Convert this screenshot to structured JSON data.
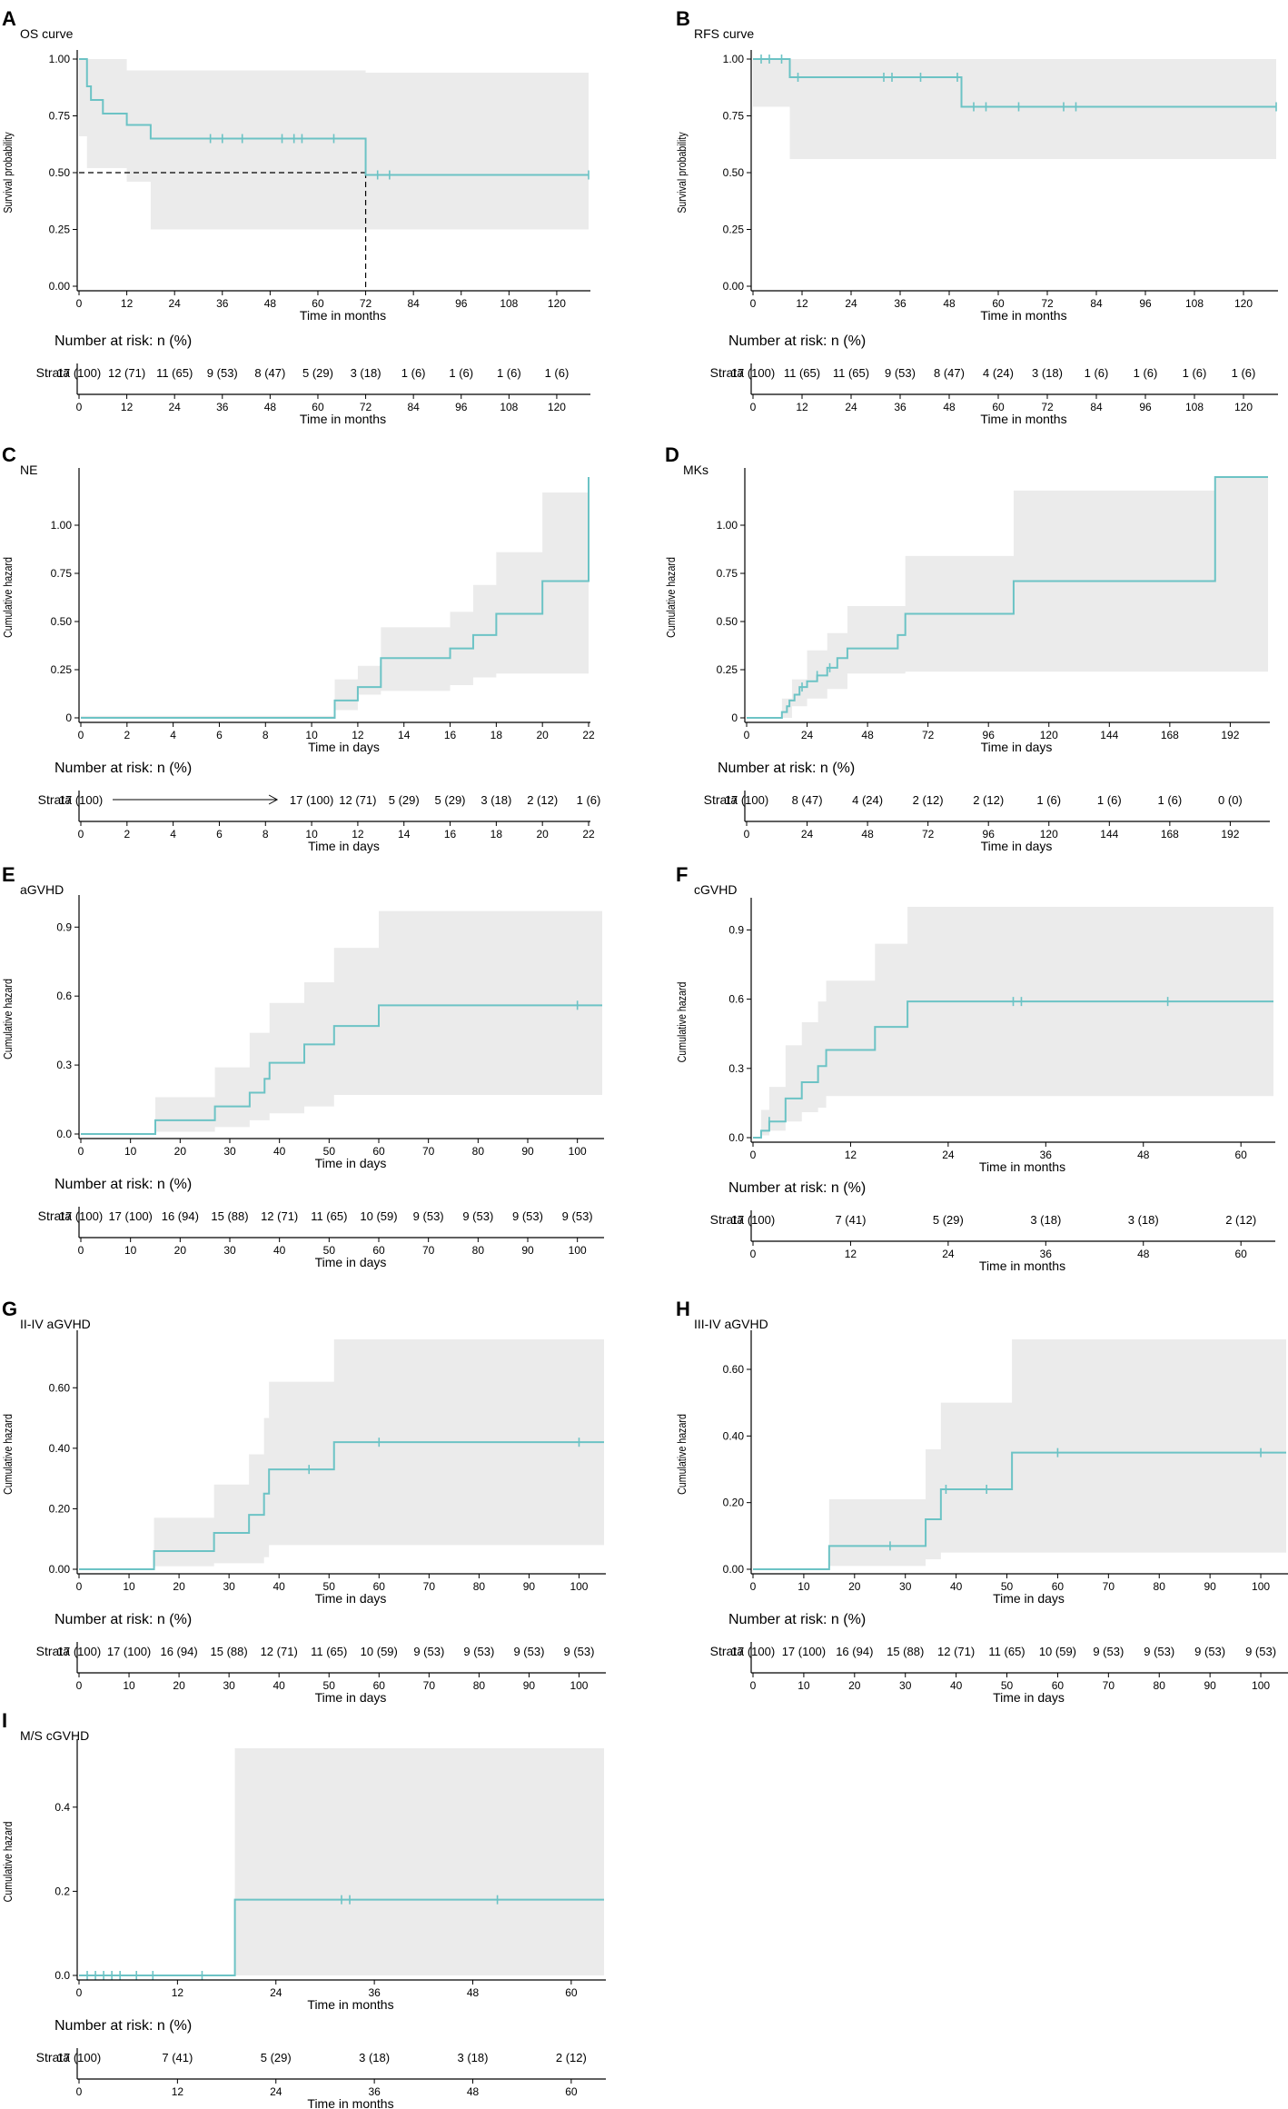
{
  "colors": {
    "curve": "#6cc3c5",
    "band": "#ebebeb",
    "axis": "#000000"
  },
  "labels": {
    "number_at_risk": "Number at risk: n (%)",
    "strata": "Strata",
    "survival_probability": "Survival probability",
    "cumulative_hazard": "Cumulative hazard",
    "time_months": "Time in months",
    "time_days": "Time in days"
  },
  "chart_data": [
    {
      "id": "A",
      "panel_letter": "A",
      "title": "OS curve",
      "type": "line",
      "xlabel": "Time in months",
      "ylabel": "Survival probability",
      "xlim": [
        0,
        128
      ],
      "ylim": [
        0,
        1
      ],
      "xticks": [
        0,
        12,
        24,
        36,
        48,
        60,
        72,
        84,
        96,
        108,
        120
      ],
      "yticks": [
        "0.00",
        "0.25",
        "0.50",
        "0.75",
        "1.00"
      ],
      "steps": [
        [
          0,
          1
        ],
        [
          2,
          0.88
        ],
        [
          3,
          0.82
        ],
        [
          6,
          0.76
        ],
        [
          12,
          0.71
        ],
        [
          18,
          0.65
        ],
        [
          72,
          0.49
        ],
        [
          128,
          0.49
        ]
      ],
      "ci_upper": [
        [
          0,
          1
        ],
        [
          2,
          1
        ],
        [
          12,
          0.95
        ],
        [
          72,
          0.94
        ],
        [
          128,
          0.94
        ]
      ],
      "ci_lower": [
        [
          0,
          1
        ],
        [
          2,
          0.66
        ],
        [
          12,
          0.52
        ],
        [
          18,
          0.46
        ],
        [
          72,
          0.25
        ],
        [
          128,
          0.25
        ]
      ],
      "censor": [
        33,
        36,
        41,
        51,
        54,
        56,
        64,
        75,
        78,
        128
      ],
      "median_line": {
        "y": 0.5,
        "x": 72
      },
      "risk_table": [
        "17 (100)",
        "12 (71)",
        "11 (65)",
        "9 (53)",
        "8 (47)",
        "5 (29)",
        "3 (18)",
        "1 (6)",
        "1 (6)",
        "1 (6)",
        "1 (6)"
      ]
    },
    {
      "id": "B",
      "panel_letter": "B",
      "title": "RFS curve",
      "type": "line",
      "xlabel": "Time in months",
      "ylabel": "Survival probability",
      "xlim": [
        0,
        128
      ],
      "ylim": [
        0,
        1
      ],
      "xticks": [
        0,
        12,
        24,
        36,
        48,
        60,
        72,
        84,
        96,
        108,
        120
      ],
      "yticks": [
        "0.00",
        "0.25",
        "0.50",
        "0.75",
        "1.00"
      ],
      "steps": [
        [
          0,
          1
        ],
        [
          9,
          0.92
        ],
        [
          51,
          0.79
        ],
        [
          128,
          0.79
        ]
      ],
      "ci_upper": [
        [
          0,
          1
        ],
        [
          128,
          1
        ]
      ],
      "ci_lower": [
        [
          0,
          1
        ],
        [
          9,
          0.79
        ],
        [
          51,
          0.56
        ],
        [
          128,
          0.56
        ]
      ],
      "censor": [
        2,
        4,
        7,
        11,
        32,
        34,
        41,
        50,
        54,
        57,
        65,
        76,
        79,
        128
      ],
      "risk_table": [
        "17 (100)",
        "11 (65)",
        "11 (65)",
        "9 (53)",
        "8 (47)",
        "4 (24)",
        "3 (18)",
        "1 (6)",
        "1 (6)",
        "1 (6)",
        "1 (6)"
      ]
    },
    {
      "id": "C",
      "panel_letter": "C",
      "title": "NE",
      "type": "line",
      "xlabel": "Time in days",
      "ylabel": "Cumulative hazard",
      "xlim": [
        0,
        22
      ],
      "ylim": [
        0,
        1.25
      ],
      "xticks": [
        0,
        2,
        4,
        6,
        8,
        10,
        12,
        14,
        16,
        18,
        20,
        22
      ],
      "yticks": [
        "0",
        "0.25",
        "0.50",
        "0.75",
        "1.00"
      ],
      "steps": [
        [
          0,
          0
        ],
        [
          11,
          0.09
        ],
        [
          12,
          0.16
        ],
        [
          13,
          0.31
        ],
        [
          16,
          0.36
        ],
        [
          17,
          0.43
        ],
        [
          18,
          0.54
        ],
        [
          20,
          0.71
        ],
        [
          22,
          1.25
        ]
      ],
      "ci_upper": [
        [
          0,
          0
        ],
        [
          11,
          0.2
        ],
        [
          12,
          0.27
        ],
        [
          13,
          0.47
        ],
        [
          16,
          0.55
        ],
        [
          17,
          0.69
        ],
        [
          18,
          0.86
        ],
        [
          20,
          1.17
        ],
        [
          22,
          1.25
        ]
      ],
      "ci_lower": [
        [
          0,
          0
        ],
        [
          11,
          0.01
        ],
        [
          12,
          0.04
        ],
        [
          13,
          0.12
        ],
        [
          16,
          0.14
        ],
        [
          17,
          0.17
        ],
        [
          18,
          0.21
        ],
        [
          20,
          0.23
        ],
        [
          22,
          0.23
        ]
      ],
      "censor": [],
      "risk_arrow": true,
      "risk_table": [
        "17 (100)",
        "",
        "",
        "",
        "",
        "17 (100)",
        "12 (71)",
        "5 (29)",
        "5 (29)",
        "3 (18)",
        "2 (12)",
        "1 (6)"
      ]
    },
    {
      "id": "D",
      "panel_letter": "D",
      "title": "MKs",
      "type": "line",
      "xlabel": "Time in days",
      "ylabel": "Cumulative hazard",
      "xlim": [
        0,
        207
      ],
      "ylim": [
        0,
        1.25
      ],
      "xticks": [
        0,
        24,
        48,
        72,
        96,
        120,
        144,
        168,
        192
      ],
      "yticks": [
        "0",
        "0.25",
        "0.50",
        "0.75",
        "1.00"
      ],
      "steps": [
        [
          0,
          0
        ],
        [
          14,
          0.03
        ],
        [
          16,
          0.06
        ],
        [
          17,
          0.09
        ],
        [
          19,
          0.12
        ],
        [
          21,
          0.16
        ],
        [
          24,
          0.19
        ],
        [
          28,
          0.22
        ],
        [
          32,
          0.26
        ],
        [
          36,
          0.31
        ],
        [
          40,
          0.36
        ],
        [
          60,
          0.43
        ],
        [
          63,
          0.54
        ],
        [
          106,
          0.71
        ],
        [
          186,
          1.25
        ]
      ],
      "ci_upper": [
        [
          0,
          0
        ],
        [
          14,
          0.1
        ],
        [
          18,
          0.2
        ],
        [
          24,
          0.35
        ],
        [
          32,
          0.44
        ],
        [
          40,
          0.58
        ],
        [
          63,
          0.84
        ],
        [
          106,
          1.18
        ],
        [
          186,
          1.25
        ]
      ],
      "ci_lower": [
        [
          0,
          0
        ],
        [
          24,
          0.06
        ],
        [
          32,
          0.1
        ],
        [
          40,
          0.15
        ],
        [
          63,
          0.23
        ],
        [
          106,
          0.24
        ],
        [
          186,
          0.24
        ]
      ],
      "censor": [
        22,
        28,
        33
      ],
      "risk_table": [
        "17 (100)",
        "8 (47)",
        "4 (24)",
        "2 (12)",
        "2 (12)",
        "1 (6)",
        "1 (6)",
        "1 (6)",
        "0 (0)"
      ]
    },
    {
      "id": "E",
      "panel_letter": "E",
      "title": "aGVHD",
      "type": "line",
      "xlabel": "Time in days",
      "ylabel": "Cumulative hazard",
      "xlim": [
        0,
        105
      ],
      "ylim": [
        0,
        1.0
      ],
      "xticks": [
        0,
        10,
        20,
        30,
        40,
        50,
        60,
        70,
        80,
        90,
        100
      ],
      "yticks": [
        "0.0",
        "0.3",
        "0.6",
        "0.9"
      ],
      "steps": [
        [
          0,
          0
        ],
        [
          15,
          0.06
        ],
        [
          27,
          0.12
        ],
        [
          34,
          0.18
        ],
        [
          37,
          0.24
        ],
        [
          38,
          0.31
        ],
        [
          45,
          0.39
        ],
        [
          51,
          0.47
        ],
        [
          60,
          0.56
        ],
        [
          105,
          0.56
        ]
      ],
      "ci_upper": [
        [
          0,
          0
        ],
        [
          15,
          0.16
        ],
        [
          27,
          0.29
        ],
        [
          34,
          0.44
        ],
        [
          38,
          0.57
        ],
        [
          45,
          0.66
        ],
        [
          51,
          0.81
        ],
        [
          60,
          0.97
        ],
        [
          105,
          0.97
        ]
      ],
      "ci_lower": [
        [
          0,
          0
        ],
        [
          27,
          0.01
        ],
        [
          34,
          0.03
        ],
        [
          38,
          0.06
        ],
        [
          45,
          0.09
        ],
        [
          51,
          0.12
        ],
        [
          60,
          0.17
        ],
        [
          105,
          0.17
        ]
      ],
      "censor": [
        100
      ],
      "risk_table": [
        "17 (100)",
        "17 (100)",
        "16 (94)",
        "15 (88)",
        "12 (71)",
        "11 (65)",
        "10 (59)",
        "9 (53)",
        "9 (53)",
        "9 (53)",
        "9 (53)"
      ]
    },
    {
      "id": "F",
      "panel_letter": "F",
      "title": "cGVHD",
      "type": "line",
      "xlabel": "Time in months",
      "ylabel": "Cumulative hazard",
      "xlim": [
        0,
        64
      ],
      "ylim": [
        0,
        1.0
      ],
      "xticks": [
        0,
        12,
        24,
        36,
        48,
        60
      ],
      "yticks": [
        "0.0",
        "0.3",
        "0.6",
        "0.9"
      ],
      "steps": [
        [
          0,
          0
        ],
        [
          1,
          0.03
        ],
        [
          2,
          0.07
        ],
        [
          4,
          0.17
        ],
        [
          6,
          0.24
        ],
        [
          8,
          0.31
        ],
        [
          9,
          0.38
        ],
        [
          15,
          0.48
        ],
        [
          19,
          0.59
        ],
        [
          64,
          0.59
        ]
      ],
      "ci_upper": [
        [
          0,
          0
        ],
        [
          1,
          0.12
        ],
        [
          2,
          0.22
        ],
        [
          4,
          0.4
        ],
        [
          6,
          0.5
        ],
        [
          8,
          0.59
        ],
        [
          9,
          0.68
        ],
        [
          15,
          0.84
        ],
        [
          19,
          1.0
        ],
        [
          64,
          1.0
        ]
      ],
      "ci_lower": [
        [
          0,
          0
        ],
        [
          2,
          0.01
        ],
        [
          4,
          0.03
        ],
        [
          6,
          0.07
        ],
        [
          8,
          0.11
        ],
        [
          9,
          0.13
        ],
        [
          15,
          0.18
        ],
        [
          19,
          0.18
        ],
        [
          64,
          0.18
        ]
      ],
      "censor": [
        2,
        32,
        33,
        51
      ],
      "risk_table": [
        "17 (100)",
        "7 (41)",
        "5 (29)",
        "3 (18)",
        "3 (18)",
        "2 (12)"
      ]
    },
    {
      "id": "G",
      "panel_letter": "G",
      "title": "II-IV aGVHD",
      "type": "line",
      "xlabel": "Time in days",
      "ylabel": "Cumulative hazard",
      "xlim": [
        0,
        105
      ],
      "ylim": [
        0,
        0.76
      ],
      "xticks": [
        0,
        10,
        20,
        30,
        40,
        50,
        60,
        70,
        80,
        90,
        100
      ],
      "yticks": [
        "0.00",
        "0.20",
        "0.40",
        "0.60"
      ],
      "steps": [
        [
          0,
          0
        ],
        [
          15,
          0.06
        ],
        [
          27,
          0.12
        ],
        [
          34,
          0.18
        ],
        [
          37,
          0.25
        ],
        [
          38,
          0.33
        ],
        [
          51,
          0.42
        ],
        [
          105,
          0.42
        ]
      ],
      "ci_upper": [
        [
          0,
          0
        ],
        [
          15,
          0.17
        ],
        [
          27,
          0.28
        ],
        [
          34,
          0.38
        ],
        [
          37,
          0.5
        ],
        [
          38,
          0.62
        ],
        [
          51,
          0.76
        ],
        [
          105,
          0.76
        ]
      ],
      "ci_lower": [
        [
          0,
          0
        ],
        [
          27,
          0.01
        ],
        [
          34,
          0.02
        ],
        [
          38,
          0.04
        ],
        [
          51,
          0.08
        ],
        [
          105,
          0.08
        ]
      ],
      "censor": [
        46,
        60,
        100
      ],
      "risk_table": [
        "17 (100)",
        "17 (100)",
        "16 (94)",
        "15 (88)",
        "12 (71)",
        "11 (65)",
        "10 (59)",
        "9 (53)",
        "9 (53)",
        "9 (53)",
        "9 (53)"
      ]
    },
    {
      "id": "H",
      "panel_letter": "H",
      "title": "III-IV aGVHD",
      "type": "line",
      "xlabel": "Time in days",
      "ylabel": "Cumulative hazard",
      "xlim": [
        0,
        105
      ],
      "ylim": [
        0,
        0.69
      ],
      "xticks": [
        0,
        10,
        20,
        30,
        40,
        50,
        60,
        70,
        80,
        90,
        100
      ],
      "yticks": [
        "0.00",
        "0.20",
        "0.40",
        "0.60"
      ],
      "steps": [
        [
          0,
          0
        ],
        [
          15,
          0.07
        ],
        [
          34,
          0.15
        ],
        [
          37,
          0.24
        ],
        [
          51,
          0.35
        ],
        [
          105,
          0.35
        ]
      ],
      "ci_upper": [
        [
          0,
          0
        ],
        [
          15,
          0.21
        ],
        [
          34,
          0.36
        ],
        [
          37,
          0.5
        ],
        [
          51,
          0.69
        ],
        [
          105,
          0.69
        ]
      ],
      "ci_lower": [
        [
          0,
          0
        ],
        [
          34,
          0.01
        ],
        [
          37,
          0.03
        ],
        [
          51,
          0.05
        ],
        [
          105,
          0.05
        ]
      ],
      "censor": [
        27,
        38,
        46,
        60,
        100
      ],
      "risk_table": [
        "17 (100)",
        "17 (100)",
        "16 (94)",
        "15 (88)",
        "12 (71)",
        "11 (65)",
        "10 (59)",
        "9 (53)",
        "9 (53)",
        "9 (53)",
        "9 (53)"
      ]
    },
    {
      "id": "I",
      "panel_letter": "I",
      "title": "M/S cGVHD",
      "type": "line",
      "xlabel": "Time in months",
      "ylabel": "Cumulative hazard",
      "xlim": [
        0,
        64
      ],
      "ylim": [
        0,
        0.54
      ],
      "xticks": [
        0,
        12,
        24,
        36,
        48,
        60
      ],
      "yticks": [
        "0.0",
        "0.2",
        "0.4"
      ],
      "steps": [
        [
          0,
          0
        ],
        [
          19,
          0.18
        ],
        [
          64,
          0.18
        ]
      ],
      "ci_upper": [
        [
          0,
          0
        ],
        [
          19,
          0.54
        ],
        [
          64,
          0.54
        ]
      ],
      "ci_lower": [
        [
          0,
          0
        ],
        [
          64,
          0
        ]
      ],
      "censor": [
        1,
        2,
        3,
        4,
        5,
        7,
        9,
        15,
        32,
        33,
        51
      ],
      "risk_table": [
        "17 (100)",
        "7 (41)",
        "5 (29)",
        "3 (18)",
        "3 (18)",
        "2 (12)"
      ]
    }
  ]
}
